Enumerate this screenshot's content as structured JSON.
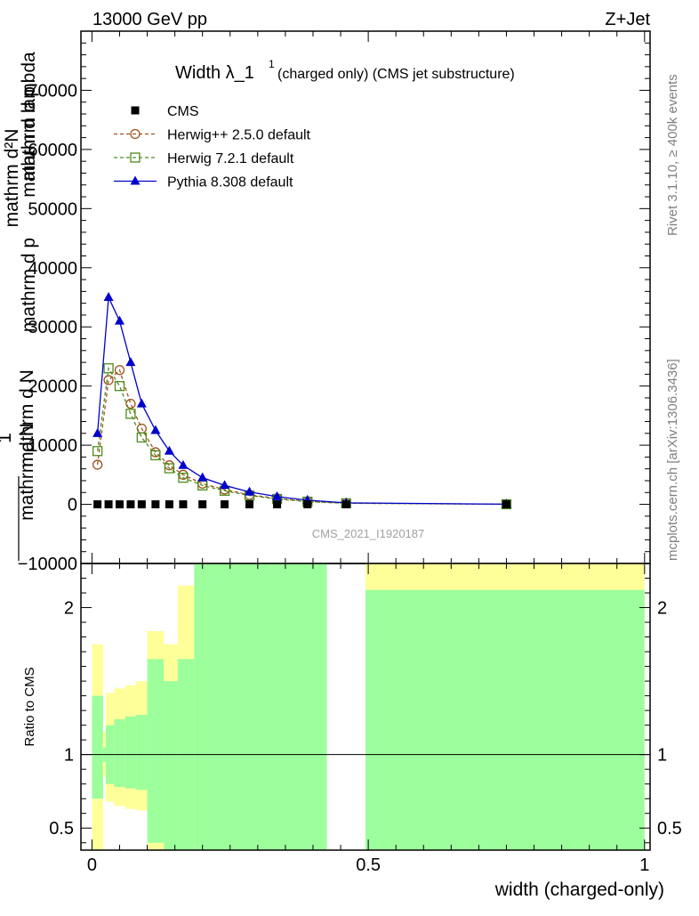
{
  "header": {
    "left": "13000 GeV pp",
    "right": "Z+Jet"
  },
  "side_labels": {
    "rivet": "Rivet 3.1.10, ≥ 400k events",
    "mcplots": "mcplots.cern.ch [arXiv:1306.3436]"
  },
  "chart_data": [
    {
      "type": "line",
      "panel": "main",
      "title_main": "Width λ_1",
      "title_sup": "1",
      "title_sub": "(charged only) (CMS jet substructure)",
      "ylabel_lines": [
        "mathrm d²N",
        "mathrm d p",
        "mathrm d p",
        "mathrm d lambda",
        "1",
        "mathrm d N",
        "mathrm d N"
      ],
      "ylim": [
        -10000,
        80000
      ],
      "yticks": [
        -10000,
        0,
        10000,
        20000,
        30000,
        40000,
        50000,
        60000,
        70000
      ],
      "ytick_labels": [
        "−10000",
        "0",
        "10000",
        "20000",
        "30000",
        "40000",
        "50000",
        "60000",
        "70000"
      ],
      "xlim": [
        -0.02,
        1.01
      ],
      "watermark": "CMS_2021_I1920187",
      "legend": [
        {
          "name": "CMS",
          "color": "#000000",
          "marker": "square-filled"
        },
        {
          "name": "Herwig++ 2.5.0 default",
          "color": "#a0521e",
          "marker": "circle-open"
        },
        {
          "name": "Herwig 7.2.1 default",
          "color": "#4c8c1c",
          "marker": "square-open"
        },
        {
          "name": "Pythia 8.308 default",
          "color": "#0000cc",
          "marker": "triangle-filled"
        }
      ],
      "x": [
        0.01,
        0.03,
        0.05,
        0.07,
        0.09,
        0.115,
        0.14,
        0.165,
        0.2,
        0.24,
        0.285,
        0.335,
        0.39,
        0.46,
        0.75
      ],
      "series": [
        {
          "name": "CMS",
          "values": [
            0,
            0,
            0,
            0,
            0,
            0,
            0,
            0,
            0,
            0,
            0,
            0,
            0,
            0,
            0
          ]
        },
        {
          "name": "Herwig++ 2.5.0 default",
          "values": [
            6700,
            21000,
            22700,
            17000,
            12800,
            8800,
            6600,
            5000,
            3500,
            2500,
            1600,
            1000,
            500,
            200,
            20
          ]
        },
        {
          "name": "Herwig 7.2.1 default",
          "values": [
            9000,
            23000,
            20000,
            15300,
            11300,
            8300,
            6100,
            4500,
            3200,
            2300,
            1500,
            900,
            450,
            180,
            20
          ]
        },
        {
          "name": "Pythia 8.308 default",
          "values": [
            12000,
            35000,
            31000,
            24000,
            17000,
            12500,
            9000,
            6600,
            4500,
            3200,
            2100,
            1300,
            700,
            250,
            30
          ]
        }
      ]
    },
    {
      "type": "area",
      "panel": "ratio",
      "ylabel": "Ratio to CMS",
      "ylim": [
        0.35,
        2.3
      ],
      "yticks": [
        0.5,
        1,
        2
      ],
      "ytick_labels": [
        "0.5",
        "1",
        "2"
      ],
      "xlim": [
        -0.02,
        1.01
      ],
      "xlabel": "width (charged-only)",
      "xticks": [
        0,
        0.5,
        1
      ],
      "xtick_labels": [
        "0",
        "0.5",
        "1"
      ],
      "reference_line": 1,
      "bands": [
        {
          "x0": 0.0,
          "x1": 0.02,
          "y_lo": 0.35,
          "y_hi": 1.75,
          "g_lo": 0.7,
          "g_hi": 1.4
        },
        {
          "x0": 0.02,
          "x1": 0.025,
          "y_lo": 0.85,
          "y_hi": 1.15,
          "g_lo": 0.95,
          "g_hi": 1.05
        },
        {
          "x0": 0.025,
          "x1": 0.04,
          "y_lo": 0.68,
          "y_hi": 1.42,
          "g_lo": 0.8,
          "g_hi": 1.2
        },
        {
          "x0": 0.04,
          "x1": 0.06,
          "y_lo": 0.65,
          "y_hi": 1.45,
          "g_lo": 0.78,
          "g_hi": 1.24
        },
        {
          "x0": 0.06,
          "x1": 0.08,
          "y_lo": 0.63,
          "y_hi": 1.47,
          "g_lo": 0.77,
          "g_hi": 1.26
        },
        {
          "x0": 0.08,
          "x1": 0.1,
          "y_lo": 0.62,
          "y_hi": 1.5,
          "g_lo": 0.76,
          "g_hi": 1.27
        },
        {
          "x0": 0.1,
          "x1": 0.13,
          "y_lo": 0.35,
          "y_hi": 1.84,
          "g_lo": 0.4,
          "g_hi": 1.65
        },
        {
          "x0": 0.13,
          "x1": 0.155,
          "y_lo": 0.35,
          "y_hi": 1.75,
          "g_lo": 0.35,
          "g_hi": 1.5
        },
        {
          "x0": 0.155,
          "x1": 0.185,
          "y_lo": 0.35,
          "y_hi": 2.15,
          "g_lo": 0.35,
          "g_hi": 1.65
        },
        {
          "x0": 0.185,
          "x1": 0.425,
          "y_lo": 0.35,
          "y_hi": 2.3,
          "g_lo": 0.35,
          "g_hi": 2.3
        },
        {
          "x0": 0.495,
          "x1": 1.0,
          "y_lo": 0.35,
          "y_hi": 2.3,
          "g_lo": 0.35,
          "g_hi": 2.12
        }
      ]
    }
  ]
}
